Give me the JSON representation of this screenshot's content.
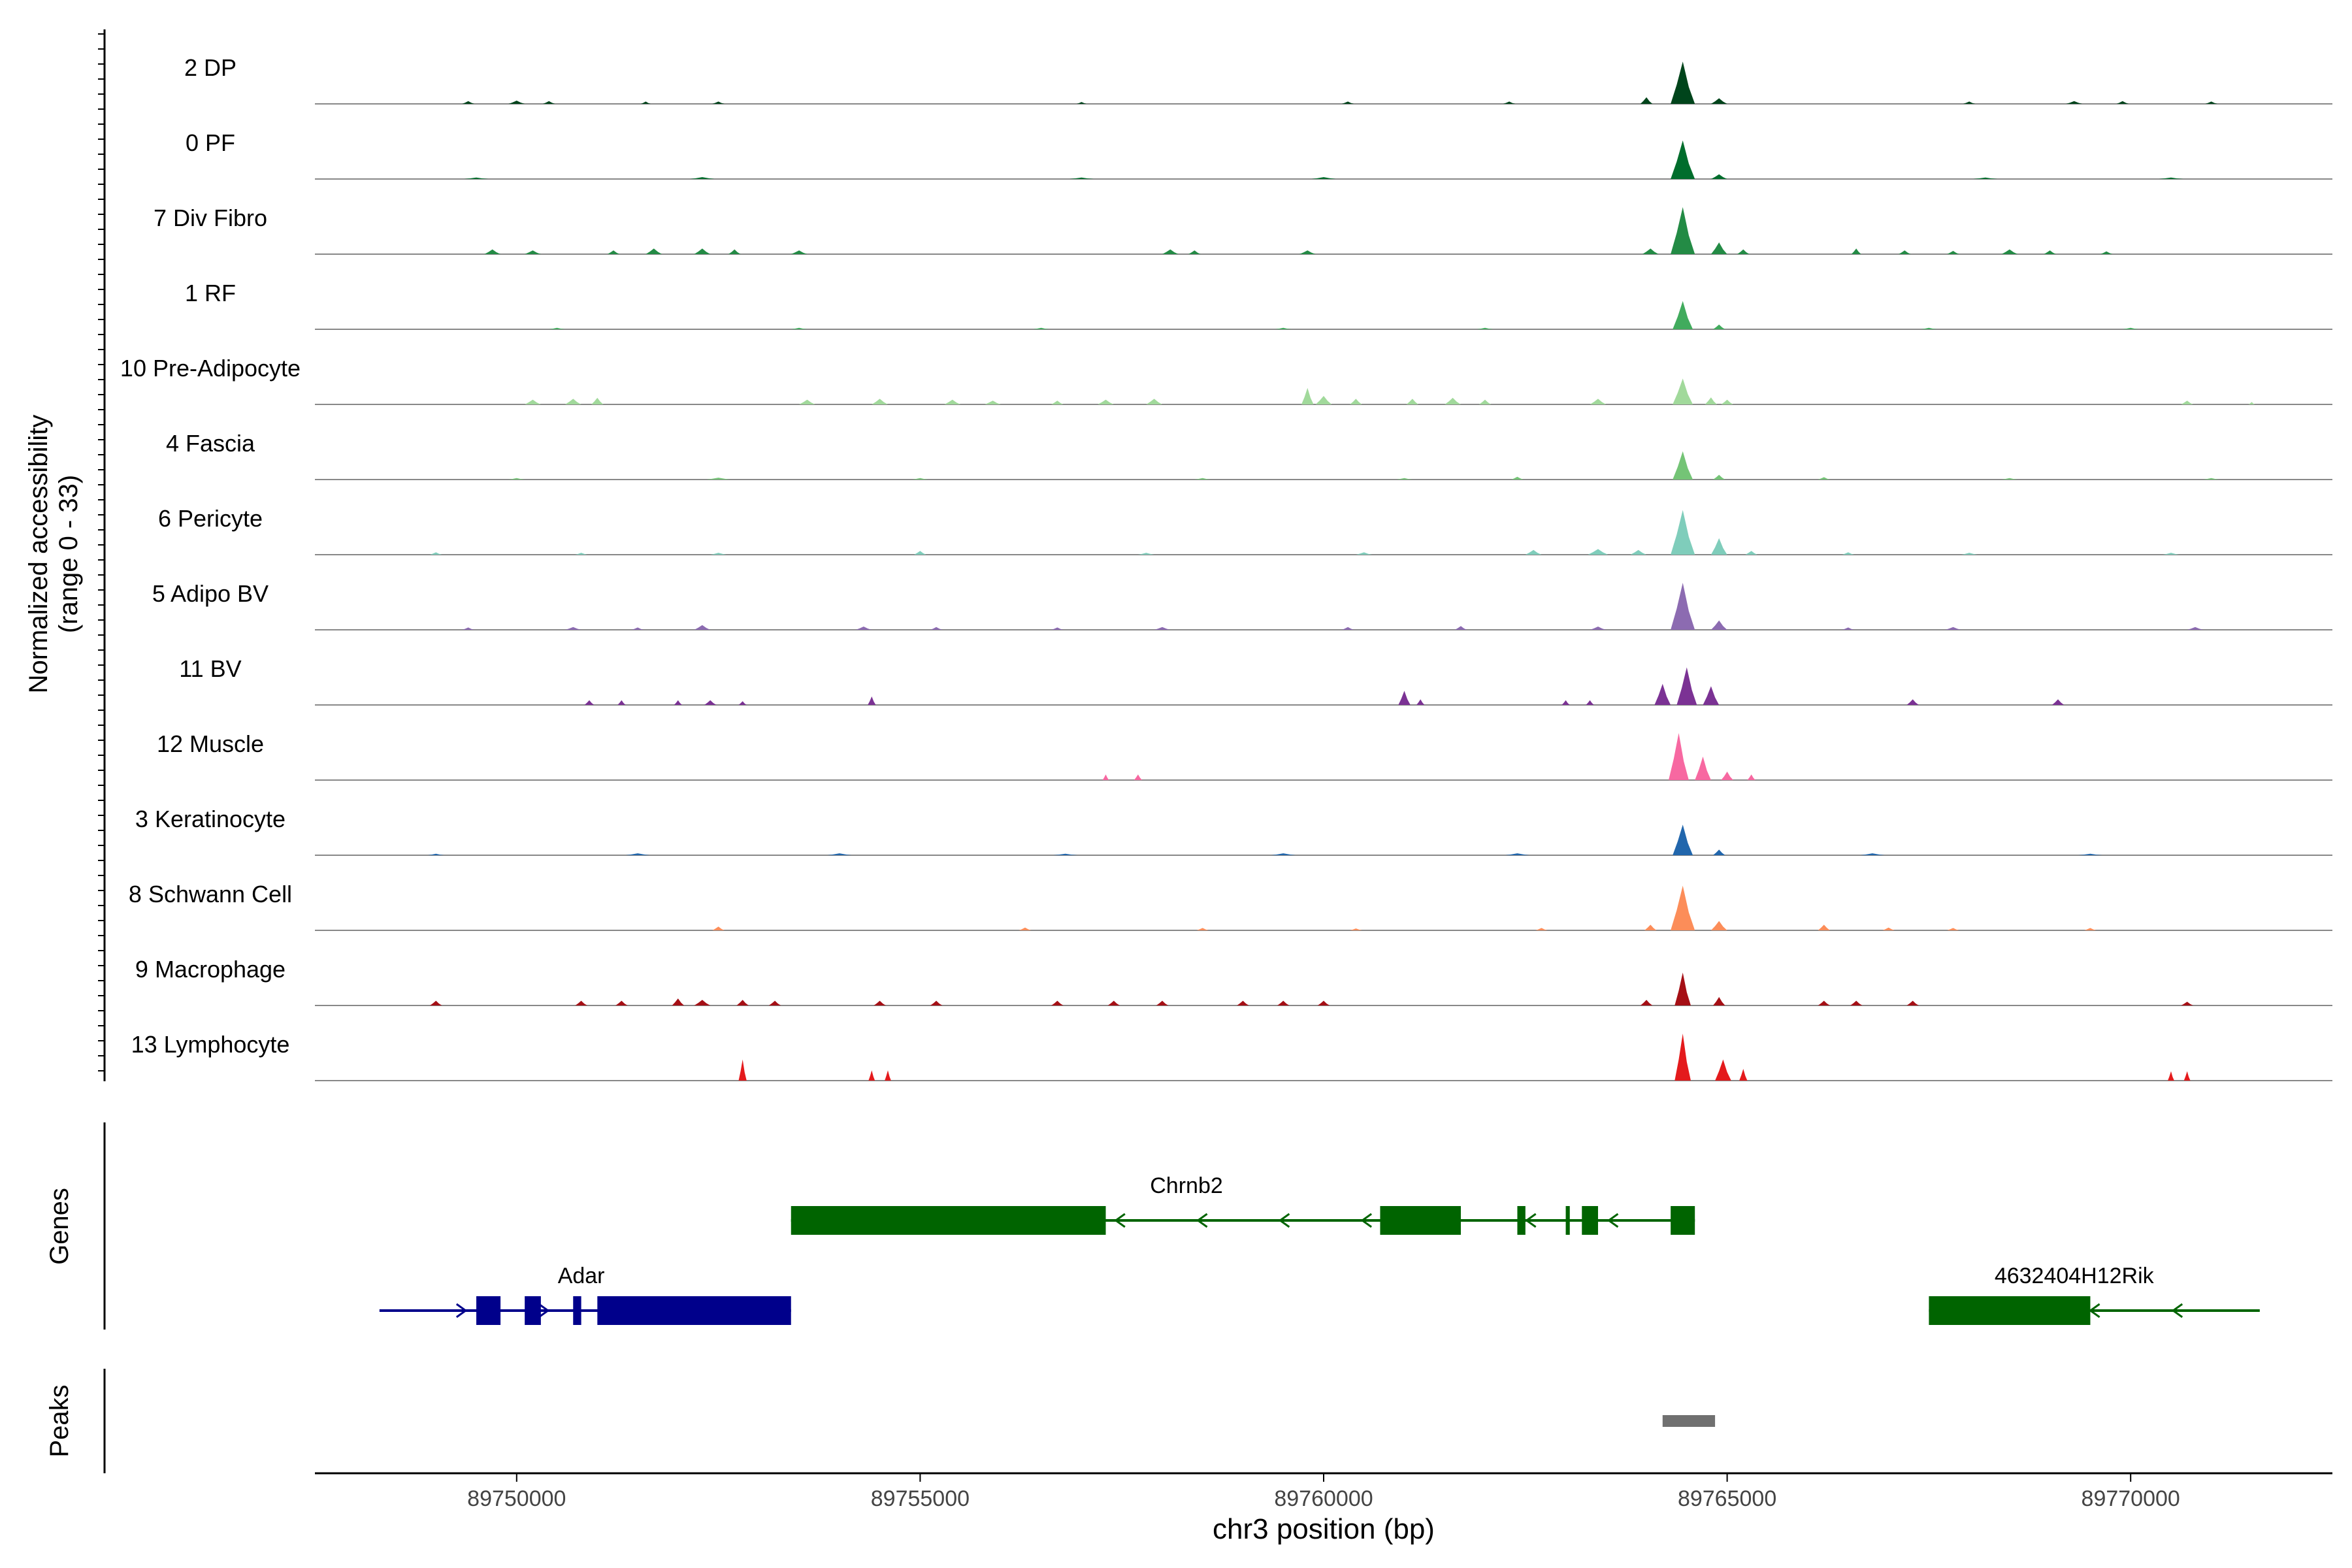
{
  "chart_data": {
    "type": "area",
    "title": "",
    "region": {
      "chrom": "chr3",
      "start": 89747500,
      "end": 89772500
    },
    "xlabel": "chr3 position (bp)",
    "x_ticks": [
      {
        "value": 89750000,
        "label": "89750000"
      },
      {
        "value": 89755000,
        "label": "89755000"
      },
      {
        "value": 89760000,
        "label": "89760000"
      },
      {
        "value": 89765000,
        "label": "89765000"
      },
      {
        "value": 89770000,
        "label": "89770000"
      }
    ],
    "ylabel_line1": "Normalized accessibility",
    "ylabel_line2": "(range 0 - 33)",
    "ylim": [
      0,
      33
    ],
    "tracks": [
      {
        "name": "2 DP",
        "color": "#00441b",
        "peaks": [
          [
            89749400,
            0.06,
            150
          ],
          [
            89750000,
            0.07,
            200
          ],
          [
            89750400,
            0.06,
            150
          ],
          [
            89751600,
            0.05,
            120
          ],
          [
            89752500,
            0.05,
            150
          ],
          [
            89757000,
            0.04,
            120
          ],
          [
            89760300,
            0.05,
            150
          ],
          [
            89762300,
            0.05,
            150
          ],
          [
            89764000,
            0.14,
            150
          ],
          [
            89764450,
            0.9,
            300
          ],
          [
            89764900,
            0.12,
            200
          ],
          [
            89768000,
            0.05,
            150
          ],
          [
            89769300,
            0.06,
            200
          ],
          [
            89769900,
            0.06,
            150
          ],
          [
            89771000,
            0.05,
            150
          ]
        ]
      },
      {
        "name": "0 PF",
        "color": "#006d2c",
        "peaks": [
          [
            89749500,
            0.03,
            300
          ],
          [
            89752300,
            0.04,
            300
          ],
          [
            89757000,
            0.03,
            300
          ],
          [
            89760000,
            0.04,
            300
          ],
          [
            89764450,
            0.82,
            300
          ],
          [
            89764900,
            0.1,
            200
          ],
          [
            89768200,
            0.03,
            300
          ],
          [
            89770500,
            0.03,
            300
          ]
        ]
      },
      {
        "name": "7 Div Fibro",
        "color": "#238b45",
        "peaks": [
          [
            89749700,
            0.1,
            200
          ],
          [
            89750200,
            0.08,
            200
          ],
          [
            89751200,
            0.08,
            150
          ],
          [
            89751700,
            0.12,
            200
          ],
          [
            89752300,
            0.12,
            200
          ],
          [
            89752700,
            0.1,
            150
          ],
          [
            89753500,
            0.08,
            200
          ],
          [
            89758100,
            0.1,
            200
          ],
          [
            89758400,
            0.08,
            150
          ],
          [
            89759800,
            0.08,
            200
          ],
          [
            89764050,
            0.12,
            200
          ],
          [
            89764450,
            1.0,
            300
          ],
          [
            89764900,
            0.25,
            200
          ],
          [
            89765200,
            0.1,
            150
          ],
          [
            89766600,
            0.12,
            120
          ],
          [
            89767200,
            0.08,
            150
          ],
          [
            89767800,
            0.07,
            150
          ],
          [
            89768500,
            0.1,
            200
          ],
          [
            89769000,
            0.08,
            150
          ],
          [
            89769700,
            0.06,
            150
          ]
        ]
      },
      {
        "name": "1 RF",
        "color": "#41ab5d",
        "peaks": [
          [
            89750500,
            0.03,
            200
          ],
          [
            89753500,
            0.03,
            200
          ],
          [
            89756500,
            0.03,
            200
          ],
          [
            89759500,
            0.03,
            200
          ],
          [
            89762000,
            0.03,
            200
          ],
          [
            89764450,
            0.6,
            250
          ],
          [
            89764900,
            0.1,
            150
          ],
          [
            89767500,
            0.03,
            200
          ],
          [
            89770000,
            0.03,
            200
          ]
        ]
      },
      {
        "name": "10 Pre-Adipocyte",
        "color": "#a1d99b",
        "peaks": [
          [
            89750200,
            0.1,
            200
          ],
          [
            89750700,
            0.12,
            200
          ],
          [
            89751000,
            0.14,
            150
          ],
          [
            89753600,
            0.1,
            200
          ],
          [
            89754500,
            0.12,
            200
          ],
          [
            89755400,
            0.1,
            200
          ],
          [
            89755900,
            0.08,
            200
          ],
          [
            89756700,
            0.08,
            150
          ],
          [
            89757300,
            0.1,
            200
          ],
          [
            89757900,
            0.12,
            200
          ],
          [
            89759800,
            0.35,
            150
          ],
          [
            89760000,
            0.18,
            200
          ],
          [
            89760400,
            0.12,
            150
          ],
          [
            89761100,
            0.12,
            150
          ],
          [
            89761600,
            0.14,
            200
          ],
          [
            89762000,
            0.1,
            150
          ],
          [
            89763400,
            0.12,
            200
          ],
          [
            89764450,
            0.55,
            250
          ],
          [
            89764800,
            0.15,
            150
          ],
          [
            89765000,
            0.1,
            150
          ],
          [
            89770700,
            0.08,
            150
          ],
          [
            89771500,
            0.05,
            80
          ]
        ]
      },
      {
        "name": "4 Fascia",
        "color": "#74c476",
        "peaks": [
          [
            89750000,
            0.03,
            200
          ],
          [
            89752500,
            0.04,
            300
          ],
          [
            89755000,
            0.03,
            200
          ],
          [
            89758500,
            0.03,
            200
          ],
          [
            89761000,
            0.03,
            200
          ],
          [
            89762400,
            0.06,
            150
          ],
          [
            89764450,
            0.6,
            250
          ],
          [
            89764900,
            0.1,
            150
          ],
          [
            89766200,
            0.05,
            150
          ],
          [
            89768500,
            0.03,
            200
          ],
          [
            89771000,
            0.03,
            200
          ]
        ]
      },
      {
        "name": "6 Pericyte",
        "color": "#7fcdbb",
        "peaks": [
          [
            89749000,
            0.05,
            150
          ],
          [
            89750800,
            0.04,
            150
          ],
          [
            89752500,
            0.04,
            200
          ],
          [
            89755000,
            0.08,
            150
          ],
          [
            89757800,
            0.04,
            200
          ],
          [
            89760500,
            0.05,
            200
          ],
          [
            89762600,
            0.1,
            200
          ],
          [
            89763400,
            0.12,
            250
          ],
          [
            89763900,
            0.1,
            200
          ],
          [
            89764450,
            0.95,
            300
          ],
          [
            89764900,
            0.35,
            200
          ],
          [
            89765300,
            0.08,
            150
          ],
          [
            89766500,
            0.05,
            150
          ],
          [
            89768000,
            0.04,
            200
          ],
          [
            89770500,
            0.04,
            200
          ]
        ]
      },
      {
        "name": "5 Adipo BV",
        "color": "#8c6bb1",
        "peaks": [
          [
            89749400,
            0.05,
            150
          ],
          [
            89750700,
            0.06,
            200
          ],
          [
            89751500,
            0.05,
            150
          ],
          [
            89752300,
            0.1,
            200
          ],
          [
            89754300,
            0.07,
            200
          ],
          [
            89755200,
            0.06,
            150
          ],
          [
            89756700,
            0.05,
            150
          ],
          [
            89758000,
            0.06,
            200
          ],
          [
            89760300,
            0.06,
            150
          ],
          [
            89761700,
            0.08,
            150
          ],
          [
            89763400,
            0.07,
            200
          ],
          [
            89764450,
            1.0,
            300
          ],
          [
            89764900,
            0.2,
            200
          ],
          [
            89766500,
            0.05,
            150
          ],
          [
            89767800,
            0.06,
            200
          ],
          [
            89770800,
            0.06,
            200
          ]
        ]
      },
      {
        "name": "11 BV",
        "color": "#7b3294",
        "peaks": [
          [
            89750900,
            0.1,
            120
          ],
          [
            89751300,
            0.1,
            100
          ],
          [
            89752000,
            0.1,
            100
          ],
          [
            89752400,
            0.1,
            150
          ],
          [
            89752800,
            0.08,
            100
          ],
          [
            89754400,
            0.18,
            100
          ],
          [
            89761000,
            0.3,
            150
          ],
          [
            89761200,
            0.12,
            100
          ],
          [
            89763000,
            0.1,
            100
          ],
          [
            89763300,
            0.1,
            100
          ],
          [
            89764200,
            0.45,
            200
          ],
          [
            89764500,
            0.8,
            250
          ],
          [
            89764800,
            0.4,
            200
          ],
          [
            89767300,
            0.12,
            150
          ],
          [
            89769100,
            0.12,
            150
          ]
        ]
      },
      {
        "name": "12 Muscle",
        "color": "#f768a1",
        "peaks": [
          [
            89757300,
            0.12,
            80
          ],
          [
            89757700,
            0.12,
            100
          ],
          [
            89764400,
            1.0,
            250
          ],
          [
            89764700,
            0.5,
            200
          ],
          [
            89765000,
            0.18,
            150
          ],
          [
            89765300,
            0.12,
            100
          ]
        ]
      },
      {
        "name": "3 Keratinocyte",
        "color": "#2166ac",
        "peaks": [
          [
            89749000,
            0.03,
            200
          ],
          [
            89751500,
            0.04,
            300
          ],
          [
            89754000,
            0.04,
            300
          ],
          [
            89756800,
            0.03,
            300
          ],
          [
            89759500,
            0.04,
            300
          ],
          [
            89762400,
            0.04,
            300
          ],
          [
            89764450,
            0.65,
            250
          ],
          [
            89764900,
            0.12,
            150
          ],
          [
            89766800,
            0.04,
            300
          ],
          [
            89769500,
            0.03,
            300
          ]
        ]
      },
      {
        "name": "8 Schwann Cell",
        "color": "#fc8d59",
        "peaks": [
          [
            89752500,
            0.08,
            150
          ],
          [
            89756300,
            0.06,
            150
          ],
          [
            89758500,
            0.05,
            150
          ],
          [
            89760400,
            0.04,
            150
          ],
          [
            89762700,
            0.05,
            150
          ],
          [
            89764050,
            0.12,
            150
          ],
          [
            89764450,
            0.95,
            300
          ],
          [
            89764900,
            0.2,
            200
          ],
          [
            89766200,
            0.12,
            150
          ],
          [
            89767000,
            0.06,
            150
          ],
          [
            89767800,
            0.05,
            150
          ],
          [
            89769500,
            0.05,
            150
          ]
        ]
      },
      {
        "name": "9 Macrophage",
        "color": "#a50f15",
        "peaks": [
          [
            89749000,
            0.1,
            150
          ],
          [
            89750800,
            0.1,
            150
          ],
          [
            89751300,
            0.1,
            150
          ],
          [
            89752000,
            0.15,
            150
          ],
          [
            89752300,
            0.12,
            200
          ],
          [
            89752800,
            0.12,
            150
          ],
          [
            89753200,
            0.1,
            150
          ],
          [
            89754500,
            0.1,
            150
          ],
          [
            89755200,
            0.1,
            150
          ],
          [
            89756700,
            0.1,
            150
          ],
          [
            89757400,
            0.1,
            150
          ],
          [
            89758000,
            0.1,
            150
          ],
          [
            89759000,
            0.1,
            150
          ],
          [
            89759500,
            0.1,
            150
          ],
          [
            89760000,
            0.1,
            150
          ],
          [
            89764000,
            0.12,
            150
          ],
          [
            89764450,
            0.7,
            200
          ],
          [
            89764900,
            0.18,
            150
          ],
          [
            89766200,
            0.1,
            150
          ],
          [
            89766600,
            0.1,
            150
          ],
          [
            89767300,
            0.1,
            150
          ],
          [
            89770700,
            0.08,
            150
          ]
        ]
      },
      {
        "name": "13 Lymphocyte",
        "color": "#e41a1c",
        "peaks": [
          [
            89752800,
            0.45,
            100
          ],
          [
            89754400,
            0.22,
            80
          ],
          [
            89754600,
            0.22,
            80
          ],
          [
            89764450,
            1.0,
            200
          ],
          [
            89764950,
            0.45,
            200
          ],
          [
            89765200,
            0.25,
            100
          ],
          [
            89770500,
            0.2,
            80
          ],
          [
            89770700,
            0.2,
            80
          ]
        ]
      }
    ],
    "genes_track_label": "Genes",
    "genes": [
      {
        "name": "Chrnb2",
        "strand": "-",
        "color": "#006400",
        "start": 89753400,
        "end": 89764600,
        "exons": [
          [
            89753400,
            89757300
          ],
          [
            89760700,
            89761700
          ],
          [
            89762400,
            89762500
          ],
          [
            89763000,
            89763050
          ],
          [
            89763200,
            89763400
          ],
          [
            89764300,
            89764600
          ]
        ]
      },
      {
        "name": "Adar",
        "strand": "+",
        "color": "#00008b",
        "start": 89748300,
        "end": 89753400,
        "exons": [
          [
            89749500,
            89749800
          ],
          [
            89750100,
            89750300
          ],
          [
            89750700,
            89750800
          ],
          [
            89751000,
            89753400
          ]
        ]
      },
      {
        "name": "4632404H12Rik",
        "strand": "-",
        "color": "#006400",
        "start": 89767500,
        "end": 89771600,
        "exons": [
          [
            89767500,
            89769500
          ]
        ]
      }
    ],
    "peaks_track_label": "Peaks",
    "called_peaks": [
      [
        89764200,
        89764850
      ]
    ]
  }
}
